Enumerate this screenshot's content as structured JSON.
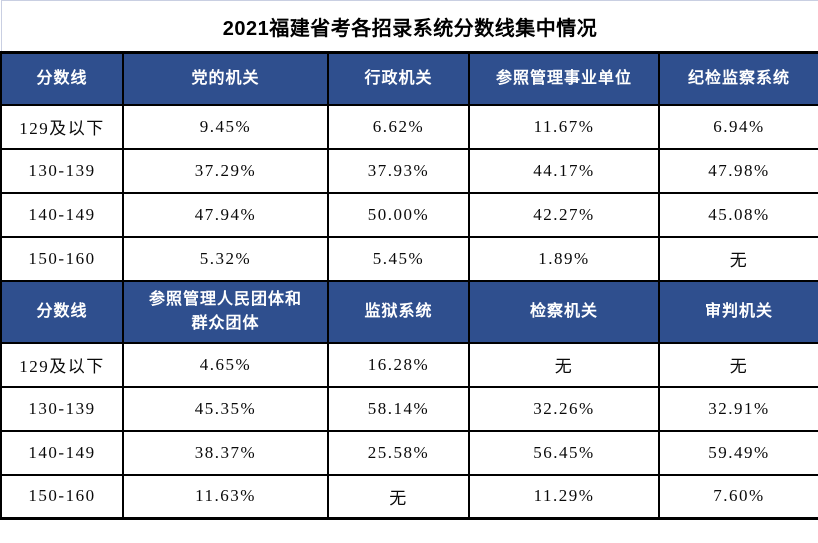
{
  "colors": {
    "header_bg": "#2f4f8e",
    "header_text": "#ffffff",
    "grid_border": "#000000",
    "title_border": "#c9cfe2",
    "body_text": "#0a0a0a"
  },
  "chart_data": {
    "type": "table",
    "title": "2021福建省考各招录系统分数线集中情况",
    "sections": [
      {
        "headers": [
          "分数线",
          "党的机关",
          "行政机关",
          "参照管理事业单位",
          "纪检监察系统"
        ],
        "rows": [
          [
            "129及以下",
            "9.45%",
            "6.62%",
            "11.67%",
            "6.94%"
          ],
          [
            "130-139",
            "37.29%",
            "37.93%",
            "44.17%",
            "47.98%"
          ],
          [
            "140-149",
            "47.94%",
            "50.00%",
            "42.27%",
            "45.08%"
          ],
          [
            "150-160",
            "5.32%",
            "5.45%",
            "1.89%",
            "无"
          ]
        ]
      },
      {
        "headers": [
          "分数线",
          "参照管理人民团体和群众团体",
          "监狱系统",
          "检察机关",
          "审判机关"
        ],
        "rows": [
          [
            "129及以下",
            "4.65%",
            "16.28%",
            "无",
            "无"
          ],
          [
            "130-139",
            "45.35%",
            "58.14%",
            "32.26%",
            "32.91%"
          ],
          [
            "140-149",
            "38.37%",
            "25.58%",
            "56.45%",
            "59.49%"
          ],
          [
            "150-160",
            "11.63%",
            "无",
            "11.29%",
            "7.60%"
          ]
        ]
      }
    ]
  }
}
